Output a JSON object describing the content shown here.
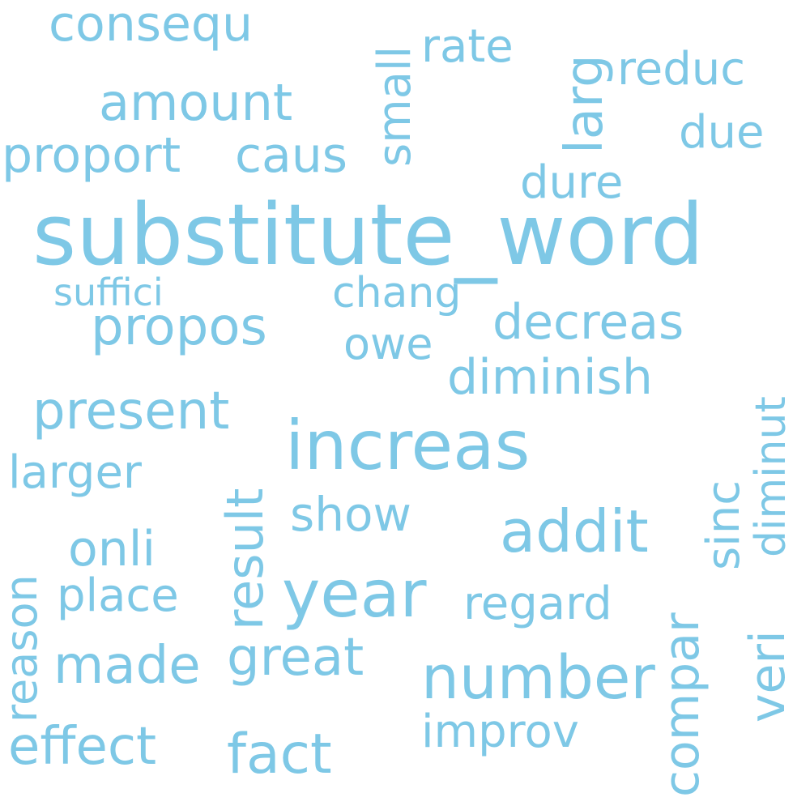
{
  "cloud": {
    "color": "#7ec8e6",
    "words": [
      "substitute_word",
      "increas",
      "year",
      "number",
      "addit",
      "propos",
      "present",
      "diminish",
      "decreas",
      "amount",
      "great",
      "made",
      "effect",
      "fact",
      "regard",
      "proport",
      "caus",
      "consequ",
      "larger",
      "onli",
      "place",
      "show",
      "improv",
      "chang",
      "owe",
      "suffici",
      "dure",
      "reduc",
      "due",
      "rate",
      "larg",
      "small",
      "result",
      "sinc",
      "diminut",
      "veri",
      "compar",
      "reason"
    ]
  }
}
